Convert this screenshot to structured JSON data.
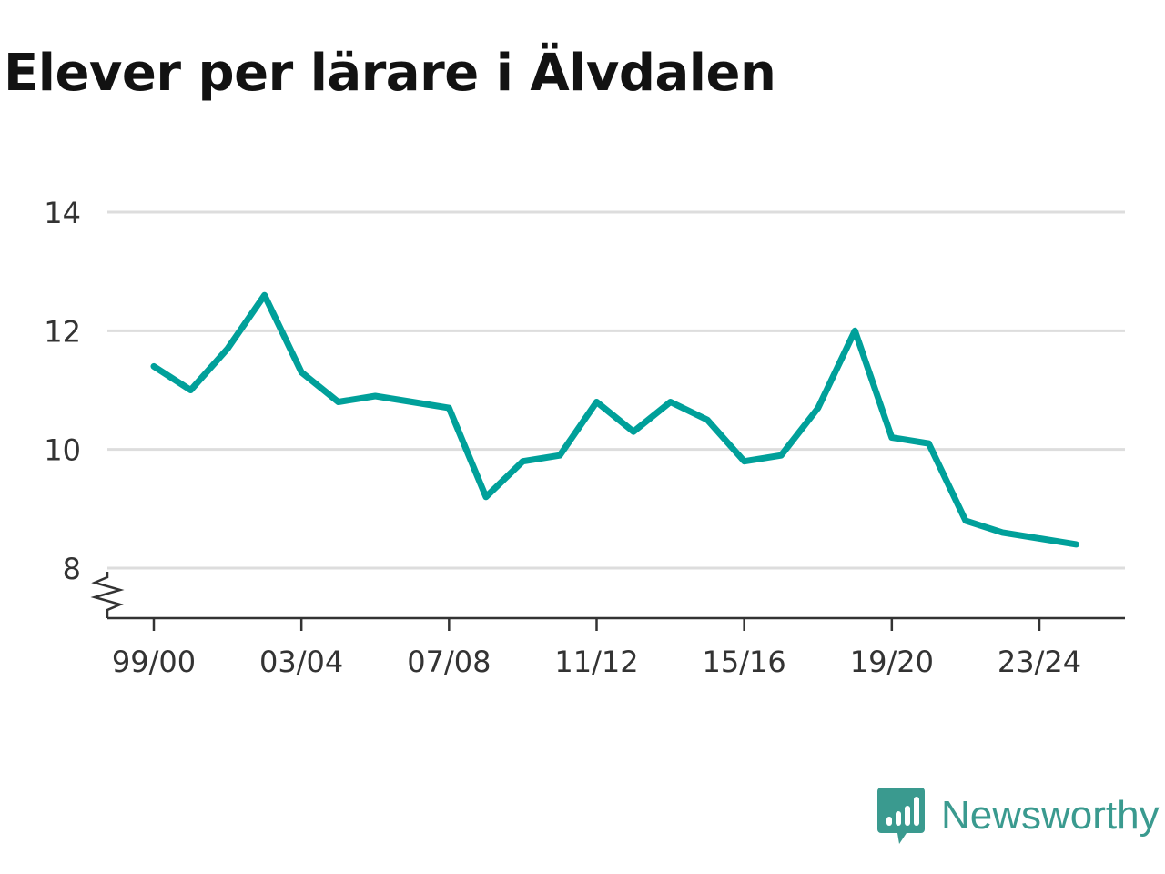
{
  "title": "Elever per lärare i Älvdalen",
  "brand": {
    "name": "Newsworthy",
    "icon": "newsworthy-logo-icon"
  },
  "colors": {
    "line": "#00a09a",
    "grid": "#dddddd",
    "axis": "#333333",
    "title": "#121212",
    "brand": "#3a9a8f"
  },
  "chart_data": {
    "type": "line",
    "title": "Elever per lärare i Älvdalen",
    "xlabel": "",
    "ylabel": "",
    "x": [
      "99/00",
      "00/01",
      "01/02",
      "02/03",
      "03/04",
      "04/05",
      "05/06",
      "06/07",
      "07/08",
      "08/09",
      "09/10",
      "10/11",
      "11/12",
      "12/13",
      "13/14",
      "14/15",
      "15/16",
      "16/17",
      "17/18",
      "18/19",
      "19/20",
      "20/21",
      "21/22",
      "22/23",
      "23/24",
      "24/25"
    ],
    "x_tick_labels": [
      "99/00",
      "03/04",
      "07/08",
      "11/12",
      "15/16",
      "19/20",
      "23/24"
    ],
    "series": [
      {
        "values": [
          11.4,
          11.0,
          11.7,
          12.6,
          11.3,
          10.8,
          10.9,
          10.8,
          10.7,
          9.2,
          9.8,
          9.9,
          10.8,
          10.3,
          10.8,
          10.5,
          9.8,
          9.9,
          10.7,
          12.0,
          10.2,
          10.1,
          8.8,
          8.6,
          8.5,
          8.4
        ]
      }
    ],
    "y_ticks": [
      8,
      10,
      12,
      14
    ],
    "ylim": [
      8,
      14
    ],
    "y_axis_break": true,
    "grid": true,
    "legend": "none"
  }
}
